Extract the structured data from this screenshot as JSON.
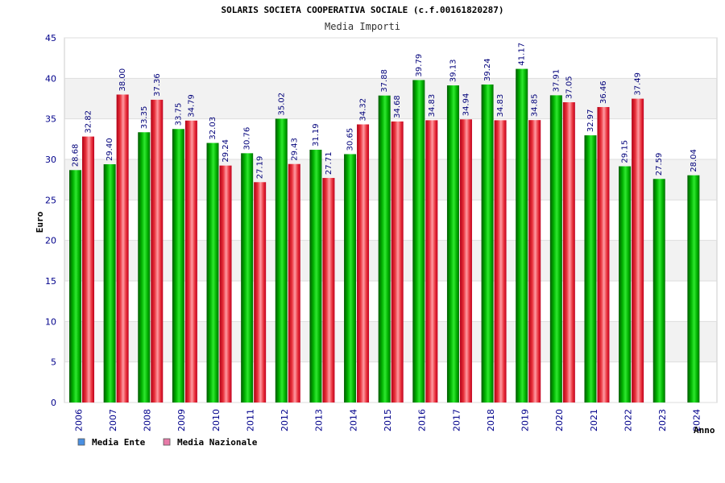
{
  "chart_data": {
    "type": "bar",
    "title": "SOLARIS SOCIETA COOPERATIVA SOCIALE (c.f.00161820287)",
    "subtitle": "Media Importi",
    "xlabel": "Anno",
    "ylabel": "Euro",
    "ylim": [
      0,
      45
    ],
    "yticks": [
      0,
      5,
      10,
      15,
      20,
      25,
      30,
      35,
      40,
      45
    ],
    "categories": [
      "2006",
      "2007",
      "2008",
      "2009",
      "2010",
      "2011",
      "2012",
      "2013",
      "2014",
      "2015",
      "2016",
      "2017",
      "2018",
      "2019",
      "2020",
      "2021",
      "2022",
      "2023",
      "2024"
    ],
    "series": [
      {
        "name": "Media Ente",
        "color": "#00b400",
        "legend_color": "#4a90e2",
        "values": [
          28.68,
          29.4,
          33.35,
          33.75,
          32.03,
          30.76,
          35.02,
          31.19,
          30.65,
          37.88,
          39.79,
          39.13,
          39.24,
          41.17,
          37.91,
          32.97,
          29.15,
          27.59,
          28.04
        ],
        "labels": [
          "28.68",
          "29.40",
          "33.35",
          "33.75",
          "32.03",
          "30.76",
          "35.02",
          "31.19",
          "30.65",
          "37.88",
          "39.79",
          "39.13",
          "39.24",
          "41.17",
          "37.91",
          "32.97",
          "29.15",
          "27.59",
          "28.04"
        ]
      },
      {
        "name": "Media Nazionale",
        "color": "#e02030",
        "legend_color": "#e87aa8",
        "values": [
          32.82,
          38.0,
          37.36,
          34.79,
          29.24,
          27.19,
          29.43,
          27.71,
          34.32,
          34.68,
          34.83,
          34.94,
          34.83,
          34.85,
          37.05,
          36.46,
          37.49,
          null,
          null
        ],
        "labels": [
          "32.82",
          "38.00",
          "37.36",
          "34.79",
          "29.24",
          "27.19",
          "29.43",
          "27.71",
          "34.32",
          "34.68",
          "34.83",
          "34.94",
          "34.83",
          "34.85",
          "37.05",
          "36.46",
          "37.49",
          null,
          null
        ]
      }
    ],
    "legend_position": "bottom-left",
    "grid": true
  }
}
